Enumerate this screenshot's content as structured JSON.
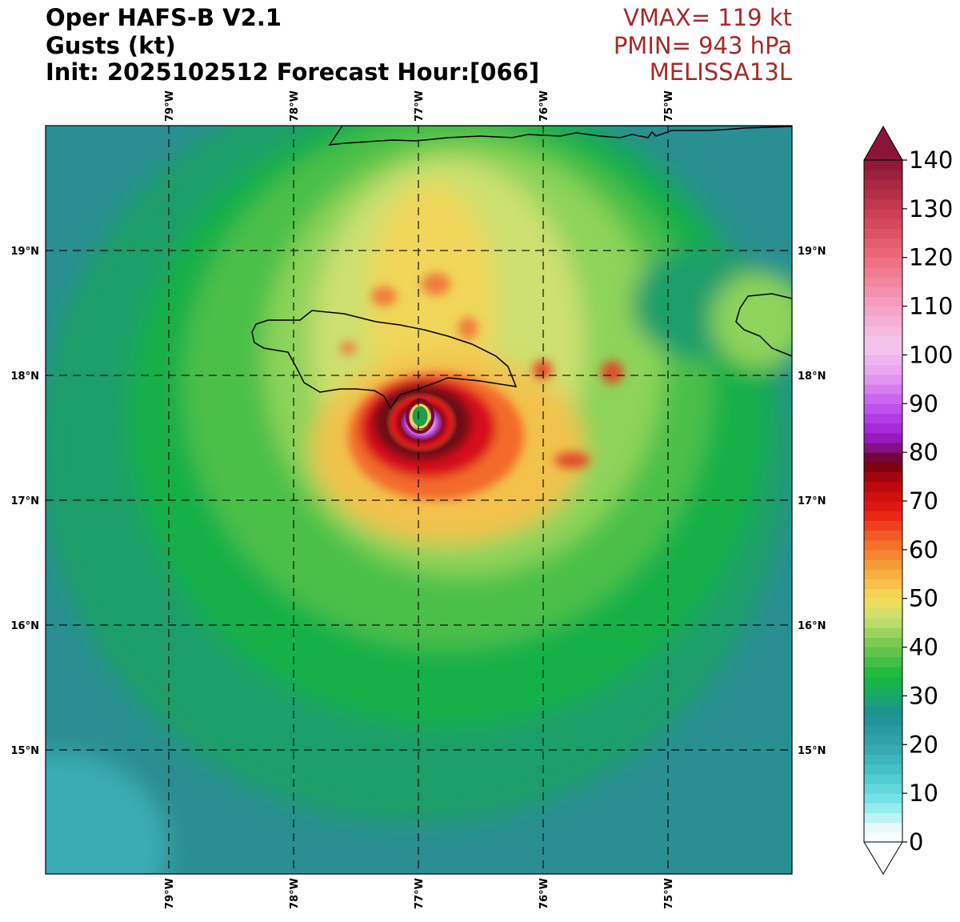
{
  "header": {
    "title_line1": "Oper HAFS-B V2.1",
    "title_line2": "Gusts (kt)",
    "title_line3": "Init: 2025102512 Forecast Hour:[066]",
    "vmax": "VMAX= 119 kt",
    "pmin": "PMIN= 943 hPa",
    "storm": "MELISSA13L",
    "stat_color": "#a52a2a"
  },
  "map": {
    "lon_labels": [
      "79°W",
      "78°W",
      "77°W",
      "76°W",
      "75°W"
    ],
    "lat_labels": [
      "19°N",
      "18°N",
      "17°N",
      "16°N",
      "15°N"
    ],
    "background_color": "#2a8f92",
    "coastline_color": "#000000"
  },
  "colorbar": {
    "tick_labels": [
      "0",
      "10",
      "20",
      "30",
      "40",
      "50",
      "60",
      "70",
      "80",
      "90",
      "100",
      "110",
      "120",
      "130",
      "140"
    ],
    "min": 0,
    "max": 140,
    "extend": "both"
  }
}
